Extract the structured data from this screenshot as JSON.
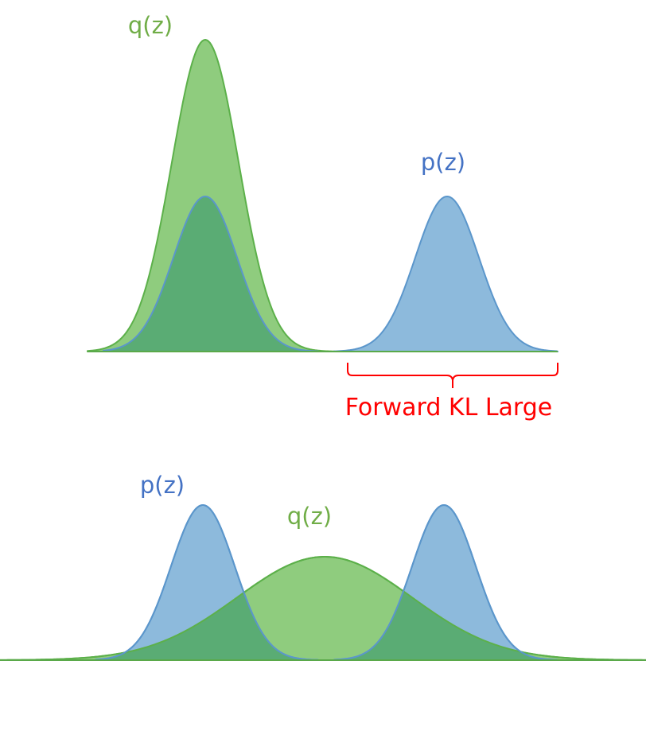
{
  "top_panel": {
    "q_label": "q(z)",
    "p_label": "p(z)",
    "annotation": "Forward KL Large"
  },
  "bottom_panel": {
    "p_label": "p(z)",
    "q_label": "q(z)"
  },
  "colors": {
    "q_fill": "#8fcc7e",
    "q_stroke": "#5cb04a",
    "q_text": "#70ad47",
    "p_fill": "#8dbadc",
    "p_stroke": "#5b96cb",
    "p_text": "#4472c4",
    "overlap_fill": "#5aac74",
    "annotation": "#ff0000",
    "axis": "#5aa94a"
  }
}
